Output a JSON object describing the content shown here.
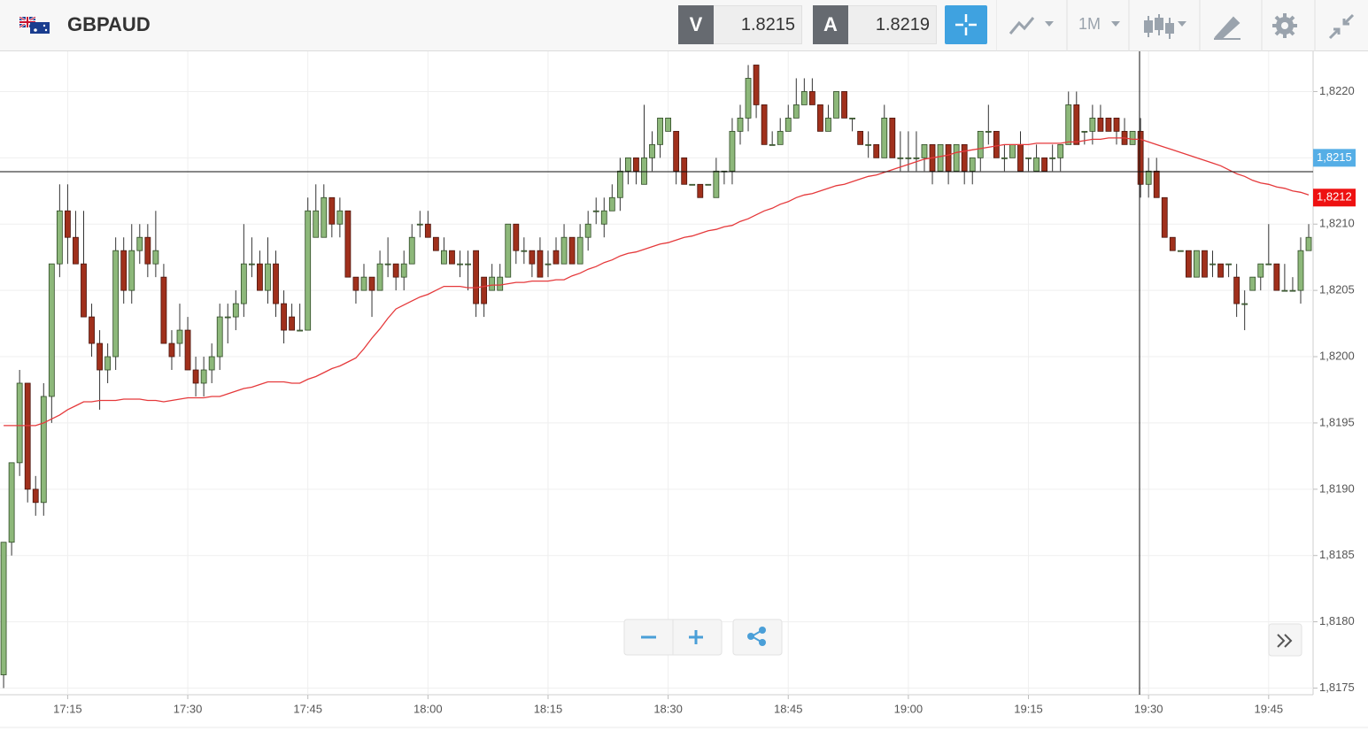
{
  "header": {
    "symbol": "GBPAUD",
    "bid_label": "V",
    "bid": "1.8215",
    "ask_label": "A",
    "ask": "1.8219",
    "timeframe": "1M"
  },
  "chart_data": {
    "type": "candlestick",
    "up_color": "#8db87a",
    "down_color": "#a0301c",
    "ylim": [
      1.81745,
      1.82229
    ],
    "yticks": [
      {
        "value": 1.8175,
        "label": "1,8175"
      },
      {
        "value": 1.818,
        "label": "1,8180"
      },
      {
        "value": 1.8185,
        "label": "1,8185"
      },
      {
        "value": 1.819,
        "label": "1,8190"
      },
      {
        "value": 1.8195,
        "label": "1,8195"
      },
      {
        "value": 1.82,
        "label": "1,8200"
      },
      {
        "value": 1.8205,
        "label": "1,8205"
      },
      {
        "value": 1.821,
        "label": "1,8210"
      },
      {
        "value": 1.8215,
        "label": "1,8215"
      },
      {
        "value": 1.822,
        "label": "1,8220"
      }
    ],
    "grid": true,
    "categories": [
      null,
      null,
      null,
      null,
      null,
      null,
      null,
      null,
      "17:15",
      null,
      null,
      null,
      null,
      null,
      null,
      null,
      null,
      null,
      null,
      null,
      null,
      null,
      null,
      "17:30",
      null,
      null,
      null,
      null,
      null,
      null,
      null,
      null,
      null,
      null,
      null,
      null,
      null,
      null,
      "17:45",
      null,
      null,
      null,
      null,
      null,
      null,
      null,
      null,
      null,
      null,
      null,
      null,
      null,
      null,
      "18:00",
      null,
      null,
      null,
      null,
      null,
      null,
      null,
      null,
      null,
      null,
      null,
      null,
      null,
      null,
      "18:15",
      null,
      null,
      null,
      null,
      null,
      null,
      null,
      null,
      null,
      null,
      null,
      null,
      null,
      null,
      "18:30",
      null,
      null,
      null,
      null,
      null,
      null,
      null,
      null,
      null,
      null,
      null,
      null,
      null,
      null,
      "18:45",
      null,
      null,
      null,
      null,
      null,
      null,
      null,
      null,
      null,
      null,
      null,
      null,
      null,
      null,
      "19:00",
      null,
      null,
      null,
      null,
      null,
      null,
      null,
      null,
      null,
      null,
      null,
      null,
      null,
      null,
      "19:15",
      null,
      null,
      null,
      null,
      null,
      null,
      null,
      null,
      null,
      null,
      null,
      null,
      null,
      null,
      "19:30",
      null,
      null,
      null,
      null,
      null,
      null,
      null,
      null,
      null,
      null,
      null,
      null,
      null,
      null,
      "19:45",
      null,
      null,
      null,
      null,
      null
    ],
    "ohlc": [
      [
        1.8176,
        1.8186,
        1.8175,
        1.8186
      ],
      [
        1.8186,
        1.8192,
        1.8185,
        1.8192
      ],
      [
        1.8192,
        1.8199,
        1.8191,
        1.8198
      ],
      [
        1.8198,
        1.8198,
        1.8189,
        1.819
      ],
      [
        1.819,
        1.8191,
        1.8188,
        1.8189
      ],
      [
        1.8189,
        1.8198,
        1.8188,
        1.8197
      ],
      [
        1.8197,
        1.8207,
        1.8195,
        1.8207
      ],
      [
        1.8207,
        1.8213,
        1.8206,
        1.8211
      ],
      [
        1.8211,
        1.8213,
        1.8207,
        1.8209
      ],
      [
        1.8209,
        1.8211,
        1.8207,
        1.8207
      ],
      [
        1.8207,
        1.8211,
        1.8203,
        1.8203
      ],
      [
        1.8203,
        1.8204,
        1.82,
        1.8201
      ],
      [
        1.8201,
        1.8202,
        1.8196,
        1.8199
      ],
      [
        1.8199,
        1.8201,
        1.8198,
        1.82
      ],
      [
        1.82,
        1.8209,
        1.8199,
        1.8208
      ],
      [
        1.8208,
        1.8209,
        1.8204,
        1.8205
      ],
      [
        1.8205,
        1.821,
        1.8204,
        1.8208
      ],
      [
        1.8208,
        1.821,
        1.8207,
        1.8209
      ],
      [
        1.8209,
        1.821,
        1.8206,
        1.8207
      ],
      [
        1.8207,
        1.8211,
        1.8206,
        1.8208
      ],
      [
        1.8206,
        1.8207,
        1.8201,
        1.8201
      ],
      [
        1.8201,
        1.8202,
        1.8199,
        1.82
      ],
      [
        1.8201,
        1.8204,
        1.82,
        1.8202
      ],
      [
        1.8202,
        1.8203,
        1.8199,
        1.8199
      ],
      [
        1.8199,
        1.82,
        1.8197,
        1.8198
      ],
      [
        1.8198,
        1.82,
        1.8197,
        1.8199
      ],
      [
        1.8199,
        1.8201,
        1.8198,
        1.82
      ],
      [
        1.82,
        1.8204,
        1.8199,
        1.8203
      ],
      [
        1.8203,
        1.8204,
        1.8201,
        1.8203
      ],
      [
        1.8203,
        1.8205,
        1.8202,
        1.8204
      ],
      [
        1.8204,
        1.821,
        1.8203,
        1.8207
      ],
      [
        1.8207,
        1.8209,
        1.8206,
        1.8207
      ],
      [
        1.8207,
        1.8208,
        1.8205,
        1.8205
      ],
      [
        1.8205,
        1.8209,
        1.8204,
        1.8207
      ],
      [
        1.8207,
        1.8208,
        1.8203,
        1.8204
      ],
      [
        1.8204,
        1.8205,
        1.8201,
        1.8202
      ],
      [
        1.8203,
        1.8204,
        1.8202,
        1.8202
      ],
      [
        1.8202,
        1.8204,
        1.8202,
        1.8202
      ],
      [
        1.8202,
        1.8212,
        1.8202,
        1.8211
      ],
      [
        1.8209,
        1.8213,
        1.8209,
        1.8211
      ],
      [
        1.8209,
        1.8213,
        1.8209,
        1.8212
      ],
      [
        1.8212,
        1.8212,
        1.8209,
        1.821
      ],
      [
        1.821,
        1.8212,
        1.8209,
        1.8211
      ],
      [
        1.8211,
        1.8211,
        1.8206,
        1.8206
      ],
      [
        1.8206,
        1.8206,
        1.8204,
        1.8205
      ],
      [
        1.8205,
        1.8207,
        1.8205,
        1.8206
      ],
      [
        1.8206,
        1.8206,
        1.8203,
        1.8205
      ],
      [
        1.8205,
        1.8208,
        1.8205,
        1.8207
      ],
      [
        1.8207,
        1.8209,
        1.8206,
        1.8207
      ],
      [
        1.8207,
        1.8207,
        1.8205,
        1.8206
      ],
      [
        1.8206,
        1.8208,
        1.8205,
        1.8207
      ],
      [
        1.8207,
        1.821,
        1.8207,
        1.8209
      ],
      [
        1.821,
        1.8211,
        1.8209,
        1.821
      ],
      [
        1.821,
        1.8211,
        1.8209,
        1.8209
      ],
      [
        1.8209,
        1.8209,
        1.8208,
        1.8208
      ],
      [
        1.8207,
        1.8209,
        1.8207,
        1.8208
      ],
      [
        1.8208,
        1.8208,
        1.8207,
        1.8207
      ],
      [
        1.8207,
        1.8208,
        1.8206,
        1.8207
      ],
      [
        1.8207,
        1.8208,
        1.8205,
        1.8207
      ],
      [
        1.8208,
        1.8208,
        1.8203,
        1.8204
      ],
      [
        1.8206,
        1.8206,
        1.8203,
        1.8204
      ],
      [
        1.8205,
        1.8207,
        1.8205,
        1.8206
      ],
      [
        1.8205,
        1.8207,
        1.8205,
        1.8206
      ],
      [
        1.8206,
        1.821,
        1.8206,
        1.821
      ],
      [
        1.821,
        1.821,
        1.8207,
        1.8208
      ],
      [
        1.8208,
        1.8209,
        1.8207,
        1.8208
      ],
      [
        1.8208,
        1.8208,
        1.8206,
        1.8207
      ],
      [
        1.8208,
        1.8209,
        1.8206,
        1.8206
      ],
      [
        1.8207,
        1.8208,
        1.8206,
        1.8207
      ],
      [
        1.8208,
        1.8209,
        1.8207,
        1.8207
      ],
      [
        1.8207,
        1.821,
        1.8207,
        1.8209
      ],
      [
        1.8209,
        1.8209,
        1.8207,
        1.8207
      ],
      [
        1.8207,
        1.821,
        1.8207,
        1.8209
      ],
      [
        1.8209,
        1.8211,
        1.8208,
        1.821
      ],
      [
        1.8211,
        1.8212,
        1.821,
        1.8211
      ],
      [
        1.821,
        1.8212,
        1.8209,
        1.8211
      ],
      [
        1.8211,
        1.8213,
        1.8211,
        1.8212
      ],
      [
        1.8212,
        1.8215,
        1.8211,
        1.8214
      ],
      [
        1.8214,
        1.8215,
        1.8213,
        1.8215
      ],
      [
        1.8215,
        1.8215,
        1.8213,
        1.8214
      ],
      [
        1.8213,
        1.8219,
        1.8213,
        1.8215
      ],
      [
        1.8215,
        1.8217,
        1.8214,
        1.8216
      ],
      [
        1.8216,
        1.8218,
        1.8215,
        1.8218
      ],
      [
        1.8217,
        1.8218,
        1.8217,
        1.8218
      ],
      [
        1.8217,
        1.8217,
        1.8213,
        1.8214
      ],
      [
        1.8215,
        1.8215,
        1.8213,
        1.8213
      ],
      [
        1.8213,
        1.8213,
        1.8213,
        1.8213
      ],
      [
        1.8213,
        1.8213,
        1.8212,
        1.8212
      ],
      [
        1.8213,
        1.8213,
        1.8213,
        1.8213
      ],
      [
        1.8212,
        1.8215,
        1.8212,
        1.8214
      ],
      [
        1.8214,
        1.8214,
        1.8213,
        1.8214
      ],
      [
        1.8214,
        1.8218,
        1.8213,
        1.8217
      ],
      [
        1.8217,
        1.8219,
        1.8216,
        1.8218
      ],
      [
        1.8218,
        1.8222,
        1.8217,
        1.8221
      ],
      [
        1.8222,
        1.8222,
        1.8218,
        1.8219
      ],
      [
        1.8219,
        1.8219,
        1.8216,
        1.8216
      ],
      [
        1.8216,
        1.8217,
        1.8216,
        1.8216
      ],
      [
        1.8216,
        1.8218,
        1.8216,
        1.8217
      ],
      [
        1.8217,
        1.8219,
        1.8217,
        1.8218
      ],
      [
        1.8218,
        1.8221,
        1.8218,
        1.8219
      ],
      [
        1.8219,
        1.8221,
        1.8219,
        1.822
      ],
      [
        1.822,
        1.8221,
        1.8219,
        1.8219
      ],
      [
        1.8219,
        1.8219,
        1.8217,
        1.8217
      ],
      [
        1.8217,
        1.8219,
        1.8217,
        1.8218
      ],
      [
        1.8218,
        1.822,
        1.8218,
        1.822
      ],
      [
        1.822,
        1.822,
        1.8218,
        1.8218
      ],
      [
        1.8218,
        1.8218,
        1.8217,
        1.8218
      ],
      [
        1.8217,
        1.8217,
        1.8216,
        1.8216
      ],
      [
        1.8216,
        1.8217,
        1.8215,
        1.8216
      ],
      [
        1.8216,
        1.8216,
        1.8215,
        1.8215
      ],
      [
        1.8215,
        1.8219,
        1.8215,
        1.8218
      ],
      [
        1.8218,
        1.8218,
        1.8215,
        1.8215
      ],
      [
        1.8215,
        1.8217,
        1.8214,
        1.8215
      ],
      [
        1.8215,
        1.8217,
        1.8214,
        1.8215
      ],
      [
        1.8215,
        1.8217,
        1.8214,
        1.8215
      ],
      [
        1.8215,
        1.8216,
        1.8214,
        1.8216
      ],
      [
        1.8216,
        1.8216,
        1.8213,
        1.8214
      ],
      [
        1.8214,
        1.8216,
        1.8214,
        1.8216
      ],
      [
        1.8216,
        1.8216,
        1.8213,
        1.8214
      ],
      [
        1.8214,
        1.8216,
        1.8214,
        1.8216
      ],
      [
        1.8216,
        1.8216,
        1.8213,
        1.8214
      ],
      [
        1.8214,
        1.8215,
        1.8213,
        1.8215
      ],
      [
        1.8215,
        1.8217,
        1.8214,
        1.8217
      ],
      [
        1.8217,
        1.8219,
        1.8216,
        1.8217
      ],
      [
        1.8217,
        1.8217,
        1.8215,
        1.8215
      ],
      [
        1.8215,
        1.8216,
        1.8214,
        1.8215
      ],
      [
        1.8215,
        1.8216,
        1.8215,
        1.8216
      ],
      [
        1.8216,
        1.8217,
        1.8214,
        1.8214
      ],
      [
        1.8215,
        1.8215,
        1.8214,
        1.8215
      ],
      [
        1.8214,
        1.8216,
        1.8214,
        1.8215
      ],
      [
        1.8215,
        1.8215,
        1.8214,
        1.8214
      ],
      [
        1.8215,
        1.8216,
        1.8214,
        1.8215
      ],
      [
        1.8215,
        1.8216,
        1.8214,
        1.8216
      ],
      [
        1.8216,
        1.822,
        1.8216,
        1.8219
      ],
      [
        1.8219,
        1.822,
        1.8216,
        1.8216
      ],
      [
        1.8217,
        1.8217,
        1.8216,
        1.8217
      ],
      [
        1.8217,
        1.8219,
        1.8216,
        1.8218
      ],
      [
        1.8218,
        1.8219,
        1.8217,
        1.8217
      ],
      [
        1.8218,
        1.8218,
        1.8217,
        1.8217
      ],
      [
        1.8218,
        1.8218,
        1.8216,
        1.8217
      ],
      [
        1.8217,
        1.8218,
        1.8216,
        1.8216
      ],
      [
        1.8216,
        1.8217,
        1.8216,
        1.8217
      ],
      [
        1.8217,
        1.8218,
        1.8212,
        1.8213
      ],
      [
        1.8213,
        1.8215,
        1.8212,
        1.8214
      ],
      [
        1.8214,
        1.8215,
        1.8212,
        1.8212
      ],
      [
        1.8212,
        1.8212,
        1.8209,
        1.8209
      ],
      [
        1.8209,
        1.8209,
        1.8208,
        1.8208
      ],
      [
        1.8208,
        1.8208,
        1.8208,
        1.8208
      ],
      [
        1.8208,
        1.8208,
        1.8206,
        1.8206
      ],
      [
        1.8206,
        1.8208,
        1.8206,
        1.8208
      ],
      [
        1.8208,
        1.8208,
        1.8206,
        1.8206
      ],
      [
        1.8207,
        1.8208,
        1.8206,
        1.8207
      ],
      [
        1.8207,
        1.8207,
        1.8206,
        1.8206
      ],
      [
        1.8207,
        1.8207,
        1.8206,
        1.8207
      ],
      [
        1.8206,
        1.8207,
        1.8203,
        1.8204
      ],
      [
        1.8204,
        1.8205,
        1.8202,
        1.8204
      ],
      [
        1.8205,
        1.8206,
        1.8205,
        1.8206
      ],
      [
        1.8206,
        1.8207,
        1.8205,
        1.8207
      ],
      [
        1.8207,
        1.821,
        1.8207,
        1.8207
      ],
      [
        1.8207,
        1.8207,
        1.8205,
        1.8205
      ],
      [
        1.8205,
        1.8207,
        1.8205,
        1.8205
      ],
      [
        1.8205,
        1.8206,
        1.8205,
        1.8205
      ],
      [
        1.8205,
        1.8209,
        1.8204,
        1.8208
      ],
      [
        1.8208,
        1.821,
        1.8208,
        1.8209
      ]
    ],
    "moving_average": {
      "color": "#e5393b",
      "values": [
        1.81948,
        1.81948,
        1.81948,
        1.81948,
        1.81948,
        1.8195,
        1.81953,
        1.81956,
        1.8196,
        1.81963,
        1.81966,
        1.81966,
        1.81967,
        1.81967,
        1.81967,
        1.81968,
        1.81968,
        1.81968,
        1.81967,
        1.81967,
        1.81966,
        1.81967,
        1.81968,
        1.81969,
        1.81969,
        1.81969,
        1.8197,
        1.8197,
        1.81972,
        1.81974,
        1.81976,
        1.81977,
        1.81979,
        1.81981,
        1.81981,
        1.81981,
        1.8198,
        1.8198,
        1.81983,
        1.81985,
        1.81988,
        1.81991,
        1.81993,
        1.81996,
        1.81999,
        1.82006,
        1.82014,
        1.82021,
        1.82029,
        1.82036,
        1.82039,
        1.82042,
        1.82045,
        1.82047,
        1.8205,
        1.82053,
        1.82053,
        1.82053,
        1.82052,
        1.82052,
        1.82053,
        1.82054,
        1.82054,
        1.82055,
        1.82056,
        1.82056,
        1.82057,
        1.82057,
        1.82057,
        1.82058,
        1.82058,
        1.82061,
        1.82063,
        1.82066,
        1.82068,
        1.82071,
        1.82073,
        1.82076,
        1.82078,
        1.82079,
        1.82081,
        1.82083,
        1.82085,
        1.82086,
        1.82088,
        1.8209,
        1.82091,
        1.82093,
        1.82095,
        1.82096,
        1.82098,
        1.82099,
        1.82102,
        1.82104,
        1.82107,
        1.8211,
        1.82112,
        1.82115,
        1.82117,
        1.8212,
        1.82122,
        1.82123,
        1.82125,
        1.82127,
        1.82129,
        1.8213,
        1.82132,
        1.82134,
        1.82136,
        1.82137,
        1.82139,
        1.82141,
        1.82143,
        1.82145,
        1.82147,
        1.82149,
        1.8215,
        1.82151,
        1.82152,
        1.82154,
        1.82155,
        1.82156,
        1.82157,
        1.82158,
        1.82159,
        1.8216,
        1.8216,
        1.8216,
        1.8216,
        1.82161,
        1.82161,
        1.82161,
        1.82161,
        1.82162,
        1.82162,
        1.82163,
        1.82164,
        1.82164,
        1.82165,
        1.82165,
        1.82165,
        1.82164,
        1.82164,
        1.82162,
        1.8216,
        1.82158,
        1.82156,
        1.82154,
        1.82152,
        1.8215,
        1.82148,
        1.82146,
        1.82144,
        1.82141,
        1.82138,
        1.82136,
        1.82133,
        1.82131,
        1.8213,
        1.82128,
        1.82127,
        1.82125,
        1.82124,
        1.82122
      ]
    },
    "price_markers": [
      {
        "value": 1.8215,
        "label": "1,8215",
        "color": "#55aee6"
      },
      {
        "value": 1.8212,
        "label": "1,8212",
        "color": "#ee1111"
      }
    ]
  }
}
